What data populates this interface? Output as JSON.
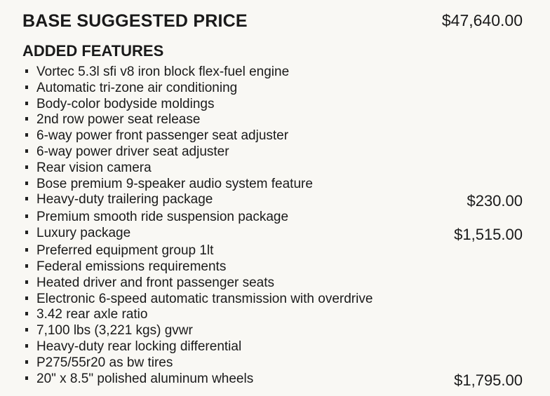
{
  "header": {
    "title": "BASE SUGGESTED PRICE",
    "base_price": "$47,640.00"
  },
  "features": {
    "heading": "ADDED FEATURES",
    "items": [
      {
        "label": "Vortec 5.3l sfi v8 iron block flex-fuel engine",
        "price": ""
      },
      {
        "label": "Automatic tri-zone air conditioning",
        "price": ""
      },
      {
        "label": "Body-color bodyside moldings",
        "price": ""
      },
      {
        "label": "2nd row power seat release",
        "price": ""
      },
      {
        "label": "6-way power front passenger seat adjuster",
        "price": ""
      },
      {
        "label": "6-way power driver seat adjuster",
        "price": ""
      },
      {
        "label": "Rear vision camera",
        "price": ""
      },
      {
        "label": "Bose premium 9-speaker audio system feature",
        "price": ""
      },
      {
        "label": "Heavy-duty trailering package",
        "price": "$230.00"
      },
      {
        "label": "Premium smooth ride suspension package",
        "price": ""
      },
      {
        "label": "Luxury package",
        "price": "$1,515.00"
      },
      {
        "label": "Preferred equipment group 1lt",
        "price": ""
      },
      {
        "label": "Federal emissions requirements",
        "price": ""
      },
      {
        "label": "Heated driver and front passenger seats",
        "price": ""
      },
      {
        "label": "Electronic 6-speed automatic transmission with overdrive",
        "price": ""
      },
      {
        "label": "3.42 rear axle ratio",
        "price": ""
      },
      {
        "label": "7,100 lbs (3,221 kgs) gvwr",
        "price": ""
      },
      {
        "label": "Heavy-duty rear locking differential",
        "price": ""
      },
      {
        "label": "P275/55r20 as bw tires",
        "price": ""
      },
      {
        "label": "20\" x 8.5\" polished aluminum wheels",
        "price": "$1,795.00"
      }
    ]
  }
}
